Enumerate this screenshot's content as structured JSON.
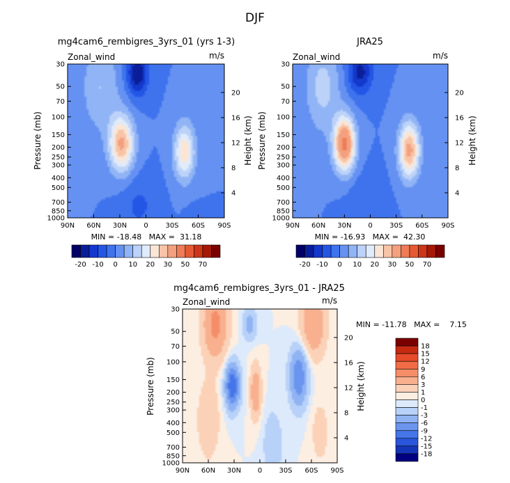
{
  "figure_title": "DJF",
  "chart_data": [
    {
      "type": "heatmap",
      "id": "model",
      "title": "mg4cam6_rembigres_3yrs_01 (yrs 1-3)",
      "field": "Zonal_wind",
      "units": "m/s",
      "ylabel": "Pressure (mb)",
      "y2label": "Height (km)",
      "x_ticks": [
        "90N",
        "60N",
        "30N",
        "0",
        "30S",
        "60S",
        "90S"
      ],
      "y_ticks": [
        "30",
        "50",
        "70",
        "100",
        "150",
        "200",
        "250",
        "300",
        "400",
        "500",
        "700",
        "850",
        "1000"
      ],
      "y2_ticks": [
        "20",
        "16",
        "12",
        "8",
        "4"
      ],
      "stats": "MIN = -18.48   MAX =  31.18",
      "min": -18.48,
      "max": 31.18,
      "features": [
        {
          "label": "subtropical jet (NH)",
          "lat": 28,
          "p": 200,
          "value": 31
        },
        {
          "label": "subtropical jet (SH)",
          "lat": -45,
          "p": 220,
          "value": 24
        },
        {
          "label": "equatorial easterlies",
          "lat": 12,
          "p": 40,
          "value": -18
        }
      ]
    },
    {
      "type": "heatmap",
      "id": "obs",
      "title": "JRA25",
      "field": "Zonal_wind",
      "units": "m/s",
      "ylabel": "Pressure (mb)",
      "y2label": "Height (km)",
      "x_ticks": [
        "90N",
        "60N",
        "30N",
        "0",
        "30S",
        "60S",
        "90S"
      ],
      "y_ticks": [
        "30",
        "50",
        "70",
        "100",
        "150",
        "200",
        "250",
        "300",
        "400",
        "500",
        "700",
        "850",
        "1000"
      ],
      "y2_ticks": [
        "20",
        "16",
        "12",
        "8",
        "4"
      ],
      "stats": "MIN = -16.93   MAX =  42.30",
      "min": -16.93,
      "max": 42.3,
      "features": [
        {
          "label": "subtropical jet (NH)",
          "lat": 30,
          "p": 200,
          "value": 42
        },
        {
          "label": "subtropical jet (SH)",
          "lat": -45,
          "p": 200,
          "value": 32
        },
        {
          "label": "equatorial easterlies",
          "lat": 12,
          "p": 40,
          "value": -16
        }
      ]
    },
    {
      "type": "heatmap",
      "id": "diff",
      "title": "mg4cam6_rembigres_3yrs_01 - JRA25",
      "field": "Zonal_wind",
      "units": "m/s",
      "ylabel": "Pressure (mb)",
      "y2label": "Height (km)",
      "x_ticks": [
        "90N",
        "60N",
        "30N",
        "0",
        "30S",
        "60S",
        "90S"
      ],
      "y_ticks": [
        "30",
        "50",
        "70",
        "100",
        "150",
        "200",
        "250",
        "300",
        "400",
        "500",
        "700",
        "850",
        "1000"
      ],
      "y2_ticks": [
        "20",
        "16",
        "12",
        "8",
        "4"
      ],
      "stats": "MIN = -11.78   MAX =    7.15",
      "min": -11.78,
      "max": 7.15,
      "features": [
        {
          "label": "negative bias core",
          "lat": 32,
          "p": 150,
          "value": -11
        },
        {
          "label": "positive bias",
          "lat": 5,
          "p": 170,
          "value": 6
        },
        {
          "label": "negative bias SH",
          "lat": -45,
          "p": 130,
          "value": -9
        }
      ]
    }
  ],
  "colorbars": {
    "abs": {
      "labels": [
        "-20",
        "-10",
        "0",
        "10",
        "20",
        "30",
        "50",
        "70"
      ],
      "colors": [
        "#000066",
        "#0a1e9a",
        "#1538cc",
        "#2456e6",
        "#3f73ee",
        "#6592f2",
        "#90b4f5",
        "#bcd2f8",
        "#e0ebfb",
        "#fbe6d5",
        "#f8c4a8",
        "#f4a07e",
        "#ee7c56",
        "#e55a34",
        "#cc3518",
        "#a51808",
        "#7a0000"
      ]
    },
    "diff": {
      "labels": [
        "18",
        "15",
        "12",
        "9",
        "6",
        "3",
        "1",
        "0",
        "-1",
        "-3",
        "-6",
        "-9",
        "-12",
        "-15",
        "-18"
      ],
      "colors": [
        "#7a0000",
        "#c52a10",
        "#e84b2a",
        "#f26c45",
        "#f58e68",
        "#f8b08f",
        "#fbd2b8",
        "#fdeee2",
        "#ddeafb",
        "#b8d1f8",
        "#8fb3f3",
        "#6a94ee",
        "#4575e8",
        "#2a56dc",
        "#1535b8",
        "#000080"
      ]
    }
  }
}
